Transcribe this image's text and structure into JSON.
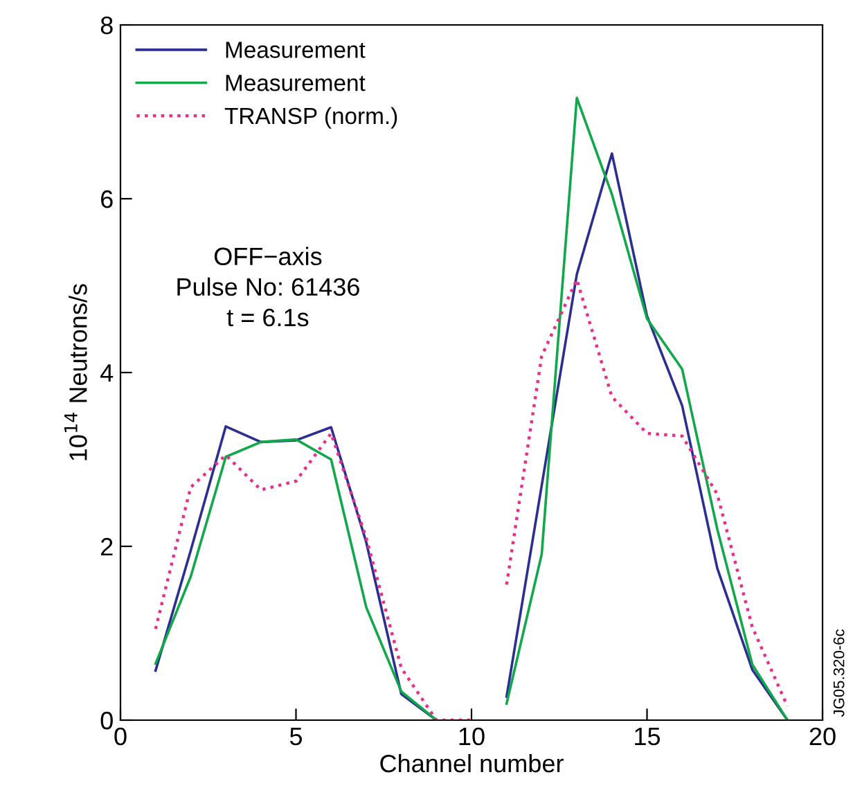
{
  "chart_data": {
    "type": "line",
    "xlabel": "Channel number",
    "ylabel": "10$^{14}$ Neutrons/s",
    "xlim": [
      0,
      20
    ],
    "ylim": [
      0,
      8
    ],
    "xticks": [
      0,
      5,
      10,
      15,
      20
    ],
    "yticks": [
      0,
      2,
      4,
      6,
      8
    ],
    "grid": false,
    "legend": "top left",
    "series": [
      {
        "name": "Measurement",
        "color": "#2b2f8f",
        "line_style": "solid",
        "x": [
          1,
          2,
          3,
          4,
          5,
          6,
          7,
          8,
          9,
          10.5,
          11,
          12,
          13,
          14,
          15,
          16,
          17,
          18,
          19
        ],
        "values": [
          0.57,
          1.95,
          3.38,
          3.2,
          3.22,
          3.37,
          2.05,
          0.3,
          0.0,
          null,
          0.27,
          2.7,
          5.13,
          6.52,
          4.65,
          3.62,
          1.75,
          0.58,
          0.0
        ]
      },
      {
        "name": "Measurement",
        "color": "#10a84a",
        "line_style": "solid",
        "x": [
          1,
          2,
          3,
          4,
          5,
          6,
          7,
          8,
          9,
          10.5,
          11,
          12,
          13,
          14,
          15,
          16,
          17,
          18,
          19
        ],
        "values": [
          0.65,
          1.65,
          3.03,
          3.2,
          3.23,
          3.0,
          1.3,
          0.33,
          0.0,
          null,
          0.19,
          1.91,
          7.16,
          6.05,
          4.62,
          4.04,
          2.2,
          0.64,
          0.0
        ]
      },
      {
        "name": "TRANSP (norm.)",
        "color": "#e8308a",
        "line_style": "dotted",
        "x": [
          1,
          2,
          3,
          4,
          5,
          6,
          7,
          8,
          9,
          10,
          10.5,
          11,
          12,
          13,
          14,
          15,
          16,
          17,
          18,
          19
        ],
        "values": [
          1.05,
          2.68,
          3.05,
          2.65,
          2.75,
          3.3,
          2.1,
          0.6,
          0.0,
          0.0,
          null,
          1.56,
          4.19,
          5.07,
          3.72,
          3.3,
          3.27,
          2.6,
          1.07,
          0.16
        ]
      }
    ],
    "annotations": [
      "OFF−axis\nPulse No: 61436\nt = 6.1s",
      "JG05.320-6c"
    ]
  }
}
